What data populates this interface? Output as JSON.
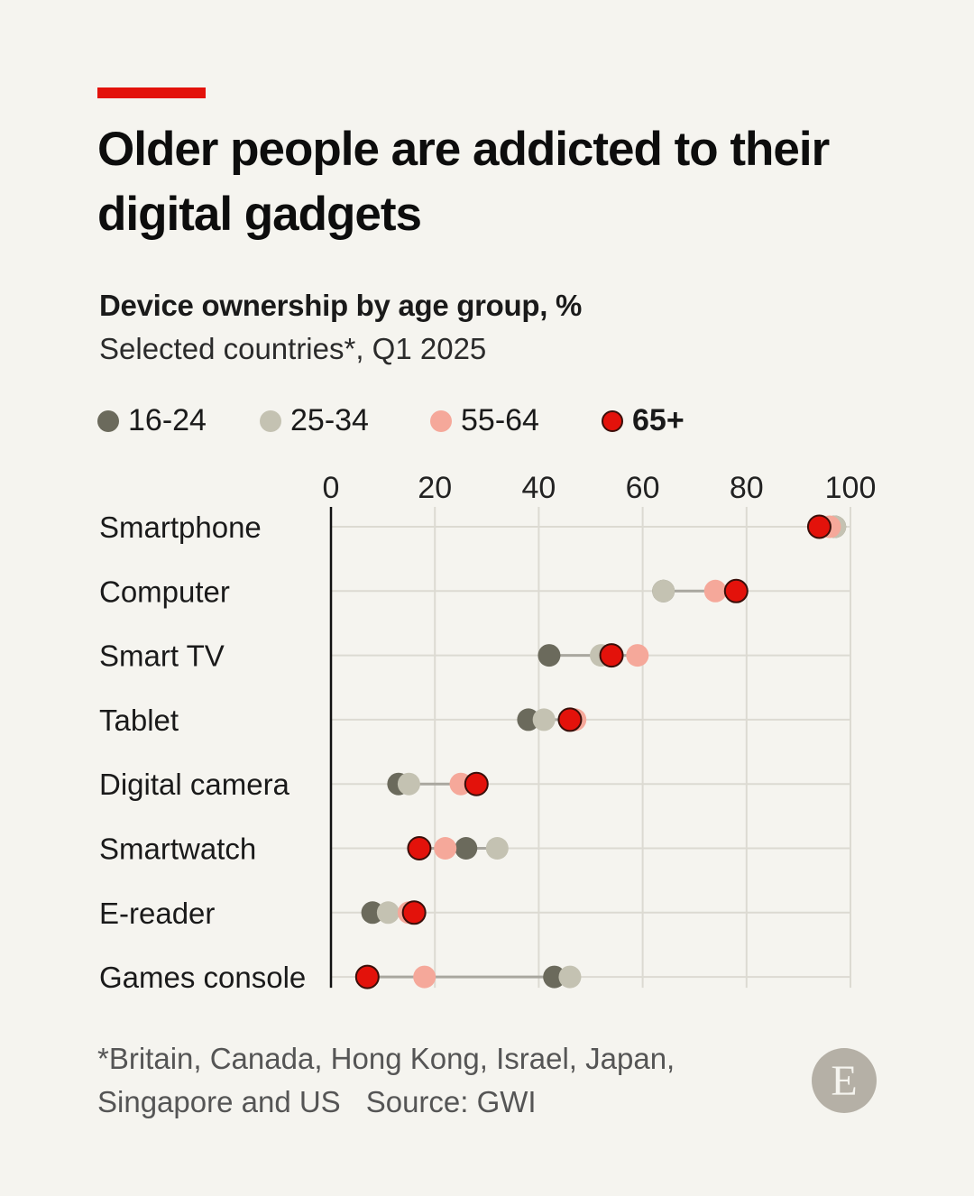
{
  "header": {
    "title": "Older people are addicted to their digital gadgets",
    "subtitle": "Device ownership by age group, %",
    "subnote": "Selected countries*, Q1 2025"
  },
  "footer": {
    "footnote": "*Britain, Canada, Hong Kong, Israel, Japan, Singapore and US",
    "source": "Source: GWI",
    "logo_letter": "E"
  },
  "colors": {
    "accent": "#e3120b",
    "16-24": "#6b6a5c",
    "25-34": "#c4c2b2",
    "55-64": "#f5a89a",
    "65+": "#e3120b"
  },
  "chart_data": {
    "type": "dot",
    "categories": [
      "Smartphone",
      "Computer",
      "Smart TV",
      "Tablet",
      "Digital camera",
      "Smartwatch",
      "E-reader",
      "Games console"
    ],
    "series": [
      {
        "name": "16-24",
        "values": [
          97,
          64,
          42,
          38,
          13,
          26,
          8,
          43
        ]
      },
      {
        "name": "25-34",
        "values": [
          97,
          64,
          52,
          41,
          15,
          32,
          11,
          46
        ]
      },
      {
        "name": "55-64",
        "values": [
          96,
          74,
          59,
          47,
          25,
          22,
          15,
          18
        ]
      },
      {
        "name": "65+",
        "values": [
          94,
          78,
          54,
          46,
          28,
          17,
          16,
          7
        ]
      }
    ],
    "xticks": [
      0,
      20,
      40,
      60,
      80,
      100
    ],
    "xlim": [
      0,
      100
    ],
    "grid": true,
    "legend_position": "top-left"
  }
}
